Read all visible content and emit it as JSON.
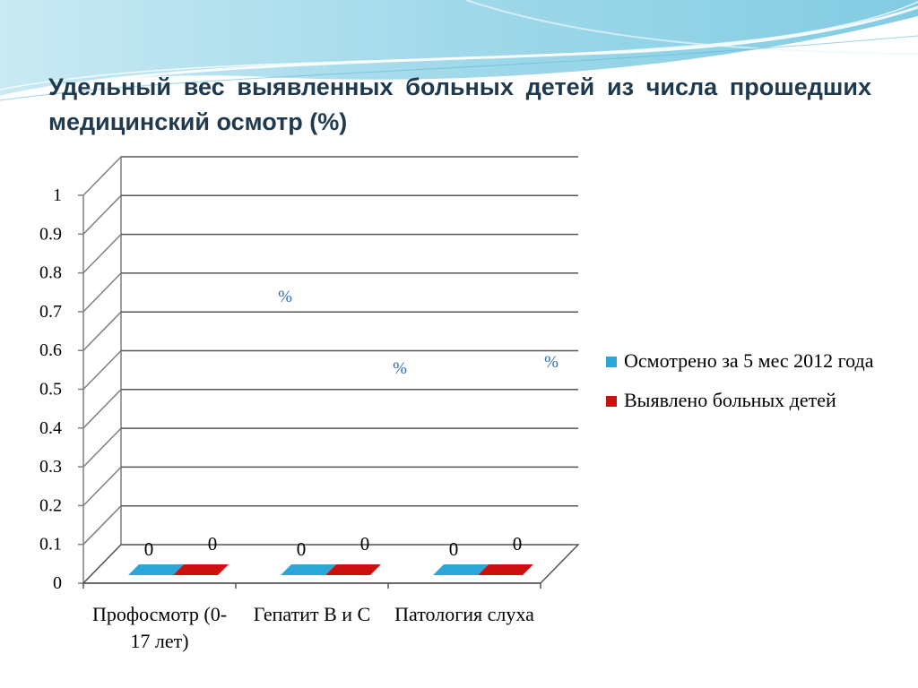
{
  "slide": {
    "title": "Удельный вес выявленных больных детей из числа прошедших медицинский осмотр (%)"
  },
  "chart_data": {
    "type": "bar",
    "title": "",
    "xlabel": "",
    "ylabel": "",
    "ylim": [
      0,
      1
    ],
    "yticks": [
      "0",
      "0.1",
      "0.2",
      "0.3",
      "0.4",
      "0.5",
      "0.6",
      "0.7",
      "0.8",
      "0.9",
      "1"
    ],
    "categories": [
      "Профосмотр (0-17 лет)",
      "Гепатит В и С",
      "Патология слуха"
    ],
    "series": [
      {
        "name": "Осмотрено за 5 мес 2012 года",
        "values": [
          0,
          0,
          0
        ],
        "labels": [
          "0",
          "0",
          "0"
        ],
        "color": "#2aa6d8"
      },
      {
        "name": "Выявлено больных детей",
        "values": [
          0,
          0,
          0
        ],
        "labels": [
          "0",
          "0",
          "0"
        ],
        "color": "#cc1010"
      }
    ],
    "annotations": [
      "%",
      "%",
      "%"
    ],
    "legend_position": "right",
    "grid": true,
    "style": "3d"
  }
}
